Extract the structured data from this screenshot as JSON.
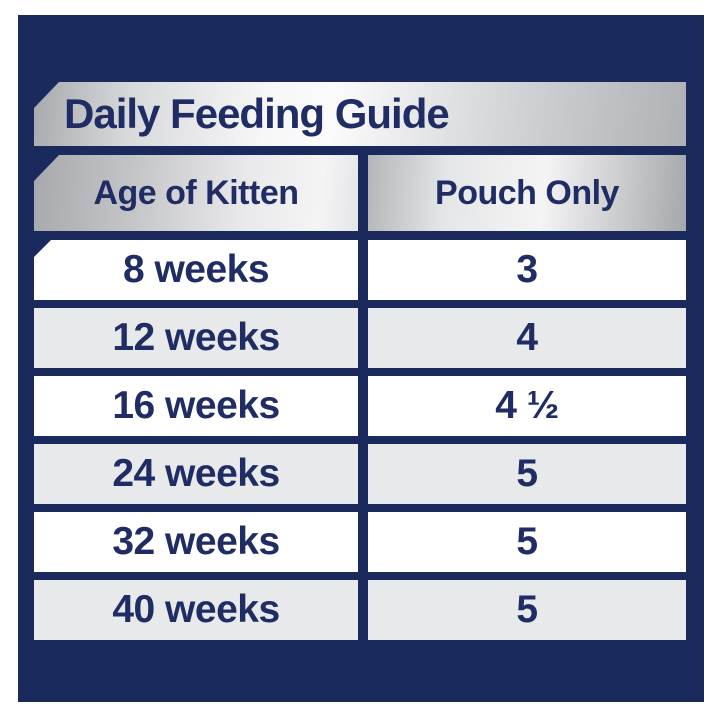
{
  "title": "Daily Feeding Guide",
  "table": {
    "columns": [
      "Age of Kitten",
      "Pouch Only"
    ],
    "rows": [
      {
        "age": "8 weeks",
        "pouches": "3"
      },
      {
        "age": "12 weeks",
        "pouches": "4"
      },
      {
        "age": "16 weeks",
        "pouches": "4 ½"
      },
      {
        "age": "24 weeks",
        "pouches": "5"
      },
      {
        "age": "32 weeks",
        "pouches": "5"
      },
      {
        "age": "40 weeks",
        "pouches": "5"
      }
    ]
  },
  "colors": {
    "navy": "#1b2a5c",
    "text-navy": "#1f2d64",
    "row-gray": "#e8e9eb",
    "row-white": "#ffffff",
    "page-bg": "#ffffff",
    "silver-dark": "#a8a9ad",
    "silver-light": "#fbfbfc"
  }
}
